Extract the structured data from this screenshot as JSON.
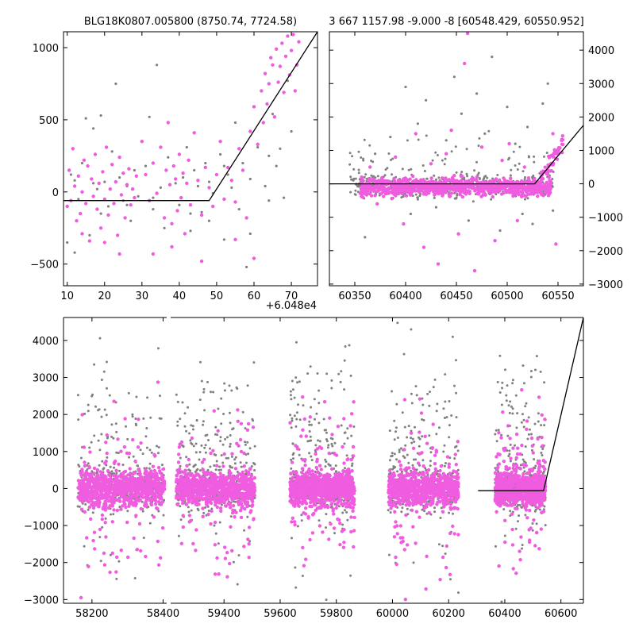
{
  "colors": {
    "gray": "#808080",
    "magenta": "#f05ce0",
    "model_line": "#000000",
    "axes": "#000000",
    "background": "#ffffff"
  },
  "chart_data": [
    {
      "id": "top-left",
      "type": "scatter",
      "title": "BLG18K0807.005800 (8750.74, 7724.58)",
      "xlim": [
        9,
        77
      ],
      "ylim": [
        -650,
        1110
      ],
      "xticks": [
        10,
        20,
        30,
        40,
        50,
        60,
        70
      ],
      "yticks": [
        -500,
        0,
        500,
        1000
      ],
      "x_offset_label": "+6.048e4",
      "grid": false,
      "series": [
        {
          "color": "gray",
          "points": [
            [
              10,
              -350
            ],
            [
              11,
              120
            ],
            [
              12,
              80
            ],
            [
              13,
              -50
            ],
            [
              14,
              200
            ],
            [
              15,
              510
            ],
            [
              16,
              -300
            ],
            [
              17,
              60
            ],
            [
              18,
              20
            ],
            [
              19,
              -150
            ],
            [
              20,
              70
            ],
            [
              21,
              -100
            ],
            [
              22,
              280
            ],
            [
              23,
              750
            ],
            [
              24,
              100
            ],
            [
              25,
              -60
            ],
            [
              26,
              40
            ],
            [
              27,
              -200
            ],
            [
              28,
              150
            ],
            [
              29,
              -30
            ],
            [
              31,
              180
            ],
            [
              32,
              520
            ],
            [
              33,
              -120
            ],
            [
              34,
              880
            ],
            [
              35,
              30
            ],
            [
              36,
              -250
            ],
            [
              37,
              240
            ],
            [
              38,
              -380
            ],
            [
              39,
              60
            ],
            [
              40,
              -90
            ],
            [
              41,
              100
            ],
            [
              42,
              310
            ],
            [
              43,
              -270
            ],
            [
              44,
              150
            ],
            [
              45,
              40
            ],
            [
              46,
              -140
            ],
            [
              47,
              200
            ],
            [
              48,
              70
            ],
            [
              49,
              -10
            ],
            [
              51,
              260
            ],
            [
              52,
              -330
            ],
            [
              53,
              120
            ],
            [
              54,
              30
            ],
            [
              55,
              480
            ],
            [
              56,
              -120
            ],
            [
              57,
              200
            ],
            [
              58,
              -520
            ],
            [
              59,
              90
            ],
            [
              61,
              310
            ],
            [
              62,
              700
            ],
            [
              63,
              40
            ],
            [
              64,
              -60
            ],
            [
              65,
              540
            ],
            [
              66,
              180
            ],
            [
              67,
              300
            ],
            [
              68,
              -40
            ],
            [
              69,
              770
            ],
            [
              70,
              420
            ],
            [
              12,
              -420
            ],
            [
              17,
              440
            ],
            [
              19,
              530
            ],
            [
              26,
              -90
            ],
            [
              33,
              -40
            ],
            [
              43,
              -150
            ],
            [
              48,
              -200
            ],
            [
              52,
              180
            ],
            [
              59,
              -290
            ],
            [
              64,
              250
            ]
          ]
        },
        {
          "color": "magenta",
          "points": [
            [
              10,
              -100
            ],
            [
              10.5,
              150
            ],
            [
              11,
              -60
            ],
            [
              11.5,
              300
            ],
            [
              12,
              40
            ],
            [
              12.5,
              -200
            ],
            [
              13,
              110
            ],
            [
              13.5,
              -150
            ],
            [
              14,
              0
            ],
            [
              14.5,
              220
            ],
            [
              15,
              -80
            ],
            [
              15.5,
              180
            ],
            [
              16,
              -340
            ],
            [
              16.5,
              90
            ],
            [
              17,
              -30
            ],
            [
              17.5,
              260
            ],
            [
              18,
              -120
            ],
            [
              18.5,
              60
            ],
            [
              19,
              -250
            ],
            [
              19.5,
              140
            ],
            [
              20,
              -50
            ],
            [
              20.5,
              310
            ],
            [
              21,
              -160
            ],
            [
              21.5,
              20
            ],
            [
              22,
              190
            ],
            [
              22.5,
              -80
            ],
            [
              23,
              70
            ],
            [
              23.5,
              -300
            ],
            [
              24,
              240
            ],
            [
              24.5,
              -20
            ],
            [
              25,
              130
            ],
            [
              25.5,
              -180
            ],
            [
              26,
              50
            ],
            [
              26.5,
              160
            ],
            [
              27,
              -90
            ],
            [
              27.5,
              20
            ],
            [
              28,
              -40
            ],
            [
              28.5,
              110
            ],
            [
              30,
              350
            ],
            [
              31,
              120
            ],
            [
              32,
              -60
            ],
            [
              33,
              200
            ],
            [
              34,
              -10
            ],
            [
              35,
              310
            ],
            [
              36,
              -180
            ],
            [
              36.5,
              150
            ],
            [
              37,
              480
            ],
            [
              37.5,
              50
            ],
            [
              38,
              -220
            ],
            [
              38.5,
              180
            ],
            [
              39,
              90
            ],
            [
              39.5,
              -130
            ],
            [
              40,
              260
            ],
            [
              40.5,
              -40
            ],
            [
              41,
              130
            ],
            [
              41.5,
              -290
            ],
            [
              42,
              60
            ],
            [
              42.5,
              220
            ],
            [
              43,
              -90
            ],
            [
              44,
              410
            ],
            [
              45,
              80
            ],
            [
              46,
              -160
            ],
            [
              47,
              170
            ],
            [
              48,
              30
            ],
            [
              49,
              -100
            ],
            [
              50,
              120
            ],
            [
              51,
              350
            ],
            [
              52,
              -50
            ],
            [
              53,
              170
            ],
            [
              54,
              80
            ],
            [
              55,
              -70
            ],
            [
              56,
              300
            ],
            [
              57,
              150
            ],
            [
              58,
              -180
            ],
            [
              59,
              420
            ],
            [
              60,
              590
            ],
            [
              61,
              330
            ],
            [
              62,
              700
            ],
            [
              62.5,
              480
            ],
            [
              63,
              820
            ],
            [
              63.5,
              610
            ],
            [
              64,
              750
            ],
            [
              64.5,
              930
            ],
            [
              65,
              880
            ],
            [
              65.5,
              520
            ],
            [
              66,
              990
            ],
            [
              66.5,
              760
            ],
            [
              67,
              870
            ],
            [
              67.5,
              1030
            ],
            [
              68,
              690
            ],
            [
              68.5,
              940
            ],
            [
              69,
              1080
            ],
            [
              69.5,
              810
            ],
            [
              70,
              980
            ],
            [
              70.5,
              1090
            ],
            [
              71,
              700
            ],
            [
              71.5,
              880
            ],
            [
              72,
              1040
            ],
            [
              60,
              -460
            ],
            [
              55,
              -330
            ],
            [
              46,
              -480
            ],
            [
              33,
              -430
            ],
            [
              20,
              -350
            ],
            [
              14,
              -290
            ],
            [
              38,
              -380
            ],
            [
              24,
              -430
            ]
          ]
        }
      ],
      "model_line": [
        [
          9,
          -60
        ],
        [
          48,
          -60
        ],
        [
          77,
          1110
        ]
      ]
    },
    {
      "id": "top-right",
      "type": "scatter",
      "title": "3 667 1157.98 -9.000 -8 [60548.429, 60550.952]",
      "xlim": [
        60325,
        60575
      ],
      "ylim": [
        -3050,
        4550
      ],
      "xticks": [
        60350,
        60400,
        60450,
        60500,
        60550
      ],
      "yticks": [
        -3000,
        -2000,
        -1000,
        0,
        1000,
        2000,
        3000,
        4000
      ],
      "yaxis_side": "right",
      "grid": false,
      "band": {
        "x_from": 60345,
        "x_to": 60548,
        "center": -100,
        "spread": 280
      },
      "rise": {
        "x_from": 60530,
        "x_to": 60555,
        "y_from": 0,
        "y_to": 1200
      },
      "outliers": {
        "gray": [
          [
            60360,
            -1600
          ],
          [
            60370,
            900
          ],
          [
            60385,
            1400
          ],
          [
            60400,
            2900
          ],
          [
            60405,
            -900
          ],
          [
            60412,
            1800
          ],
          [
            60420,
            2500
          ],
          [
            60430,
            -700
          ],
          [
            60440,
            1300
          ],
          [
            60448,
            3200
          ],
          [
            60455,
            2100
          ],
          [
            60462,
            -1100
          ],
          [
            60470,
            2700
          ],
          [
            60478,
            1500
          ],
          [
            60485,
            3800
          ],
          [
            60493,
            -1400
          ],
          [
            60500,
            2300
          ],
          [
            60508,
            1200
          ],
          [
            60515,
            -900
          ],
          [
            60520,
            1700
          ],
          [
            60525,
            -1200
          ],
          [
            60535,
            2400
          ],
          [
            60540,
            3000
          ],
          [
            60545,
            -800
          ]
        ],
        "magenta": [
          [
            60365,
            500
          ],
          [
            60372,
            -600
          ],
          [
            60390,
            800
          ],
          [
            60398,
            -1200
          ],
          [
            60410,
            1500
          ],
          [
            60418,
            -1900
          ],
          [
            60425,
            600
          ],
          [
            60432,
            -2400
          ],
          [
            60440,
            900
          ],
          [
            60445,
            1600
          ],
          [
            60452,
            -1500
          ],
          [
            60458,
            3600
          ],
          [
            60461,
            4500
          ],
          [
            60468,
            -2600
          ],
          [
            60475,
            1100
          ],
          [
            60488,
            -1700
          ],
          [
            60495,
            700
          ],
          [
            60502,
            1200
          ],
          [
            60510,
            -1100
          ],
          [
            60517,
            500
          ],
          [
            60548,
            -1800
          ],
          [
            60545,
            1500
          ]
        ]
      },
      "model_line": [
        [
          60325,
          0
        ],
        [
          60527,
          0
        ],
        [
          60575,
          1750
        ]
      ]
    },
    {
      "id": "bottom",
      "type": "scatter",
      "xlim": [
        58120,
        60680
      ],
      "ylim": [
        -3100,
        4620
      ],
      "xticks": [
        58200,
        58400,
        59400,
        59600,
        59800,
        60000,
        60200,
        60400,
        60600
      ],
      "yticks": [
        -3000,
        -2000,
        -1000,
        0,
        1000,
        2000,
        3000,
        4000
      ],
      "broken_axis": true,
      "grid": false,
      "seasons": [
        {
          "from": 58160,
          "to": 58405
        },
        {
          "from": 59230,
          "to": 59510
        },
        {
          "from": 59635,
          "to": 59865
        },
        {
          "from": 59985,
          "to": 60235
        },
        {
          "from": 60365,
          "to": 60545
        }
      ],
      "model_line": [
        [
          60305,
          -60
        ],
        [
          60538,
          -60
        ],
        [
          60680,
          4620
        ]
      ]
    }
  ]
}
